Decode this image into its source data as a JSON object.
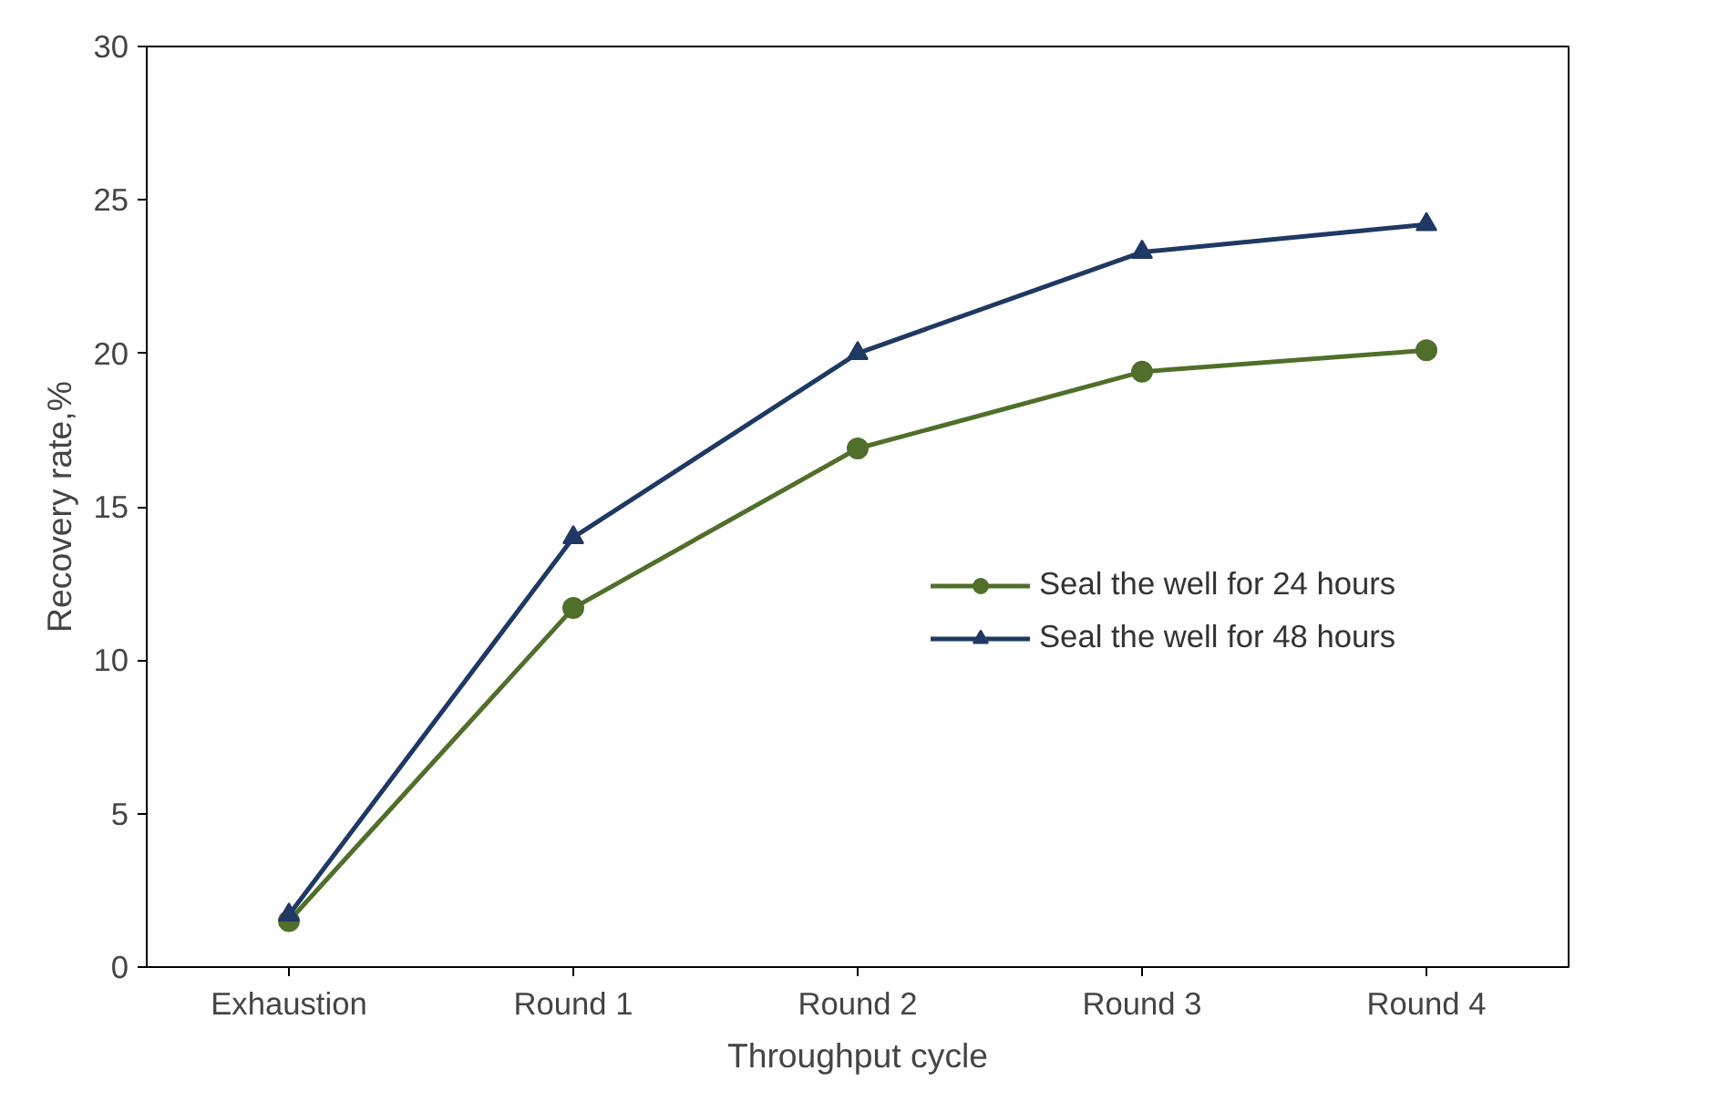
{
  "chart_data": {
    "type": "line",
    "xlabel": "Throughput cycle",
    "ylabel": "Recovery rate,%",
    "categories": [
      "Exhaustion",
      "Round 1",
      "Round 2",
      "Round 3",
      "Round 4"
    ],
    "series": [
      {
        "name": "Seal the well for 24 hours",
        "color": "#4f6f2a",
        "marker": "circle",
        "values": [
          1.5,
          11.7,
          16.9,
          19.4,
          20.1
        ]
      },
      {
        "name": "Seal the well for 48 hours",
        "color": "#1f3864",
        "marker": "triangle",
        "values": [
          1.7,
          14.0,
          20.0,
          23.3,
          24.2
        ]
      }
    ],
    "ylim": [
      0,
      30
    ],
    "yticks": [
      0,
      5,
      10,
      15,
      20,
      25,
      30
    ],
    "grid": false,
    "legend": "right",
    "line_style": "solid"
  }
}
